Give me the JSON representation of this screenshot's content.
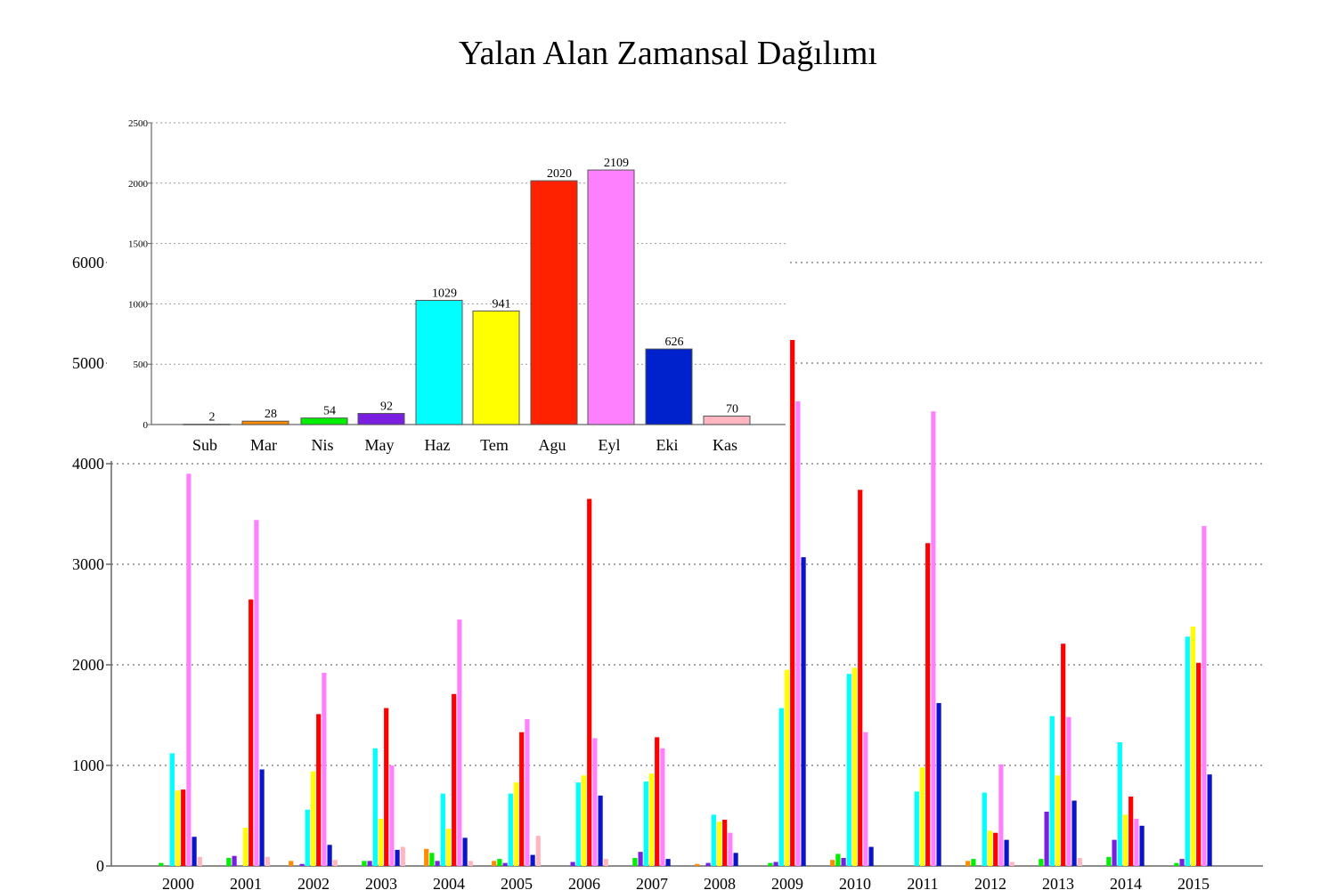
{
  "chart_data": [
    {
      "type": "bar",
      "title": "Yalan Alan Zamansal Dağılımı",
      "xlabel": "",
      "ylabel": "",
      "ylim": [
        0,
        6000
      ],
      "yticks": [
        0,
        1000,
        2000,
        3000,
        4000,
        5000,
        6000
      ],
      "grid": true,
      "categories": [
        "2000",
        "2001",
        "2002",
        "2003",
        "2004",
        "2005",
        "2006",
        "2007",
        "2008",
        "2009",
        "2010",
        "2011",
        "2012",
        "2013",
        "2014",
        "2015"
      ],
      "series": [
        {
          "color": "#ff8c00",
          "values": [
            0,
            0,
            50,
            0,
            170,
            50,
            0,
            0,
            20,
            0,
            60,
            0,
            50,
            0,
            0,
            0
          ]
        },
        {
          "color": "#00ee00",
          "values": [
            30,
            80,
            0,
            50,
            130,
            70,
            0,
            80,
            0,
            30,
            120,
            0,
            70,
            70,
            90,
            30
          ]
        },
        {
          "color": "#7a1fe0",
          "values": [
            0,
            100,
            20,
            50,
            50,
            30,
            40,
            140,
            30,
            40,
            80,
            0,
            0,
            540,
            260,
            70
          ]
        },
        {
          "color": "#00ffff",
          "values": [
            1120,
            0,
            560,
            1170,
            720,
            720,
            830,
            840,
            510,
            1570,
            1910,
            740,
            730,
            1490,
            1230,
            2280
          ]
        },
        {
          "color": "#ffff00",
          "values": [
            750,
            380,
            940,
            470,
            370,
            830,
            900,
            920,
            440,
            1950,
            1970,
            980,
            350,
            900,
            510,
            2380
          ]
        },
        {
          "color": "#ff0000",
          "values": [
            760,
            2650,
            1510,
            1570,
            1710,
            1330,
            3650,
            1280,
            460,
            5230,
            3740,
            3210,
            330,
            2210,
            690,
            2020
          ]
        },
        {
          "color": "#ff80ff",
          "values": [
            3900,
            3440,
            1920,
            1000,
            2450,
            1460,
            1270,
            1170,
            330,
            4620,
            1330,
            4520,
            1010,
            1480,
            470,
            3380
          ]
        },
        {
          "color": "#0a14c8",
          "values": [
            290,
            960,
            210,
            160,
            280,
            110,
            700,
            70,
            130,
            3070,
            190,
            1620,
            260,
            650,
            400,
            910
          ]
        },
        {
          "color": "#ffb6c1",
          "values": [
            90,
            90,
            60,
            190,
            50,
            300,
            70,
            0,
            0,
            0,
            0,
            0,
            40,
            80,
            0,
            0
          ]
        }
      ]
    },
    {
      "type": "bar",
      "title": "",
      "ylim": [
        0,
        2500
      ],
      "yticks": [
        0,
        500,
        1000,
        1500,
        2000,
        2500
      ],
      "grid": true,
      "categories": [
        "Sub",
        "Mar",
        "Nis",
        "May",
        "Haz",
        "Tem",
        "Agu",
        "Eyl",
        "Eki",
        "Kas"
      ],
      "values": [
        2,
        28,
        54,
        92,
        1029,
        941,
        2020,
        2109,
        626,
        70
      ],
      "data_labels": [
        "2",
        "28",
        "54",
        "92",
        "1029",
        "941",
        "2020",
        "2109",
        "626",
        "70"
      ],
      "colors": [
        "#ffffff",
        "#ff8c00",
        "#00ee00",
        "#7a1fe0",
        "#00ffff",
        "#ffff00",
        "#ff2200",
        "#ff80ff",
        "#0022cc",
        "#ffb6c1"
      ]
    }
  ]
}
